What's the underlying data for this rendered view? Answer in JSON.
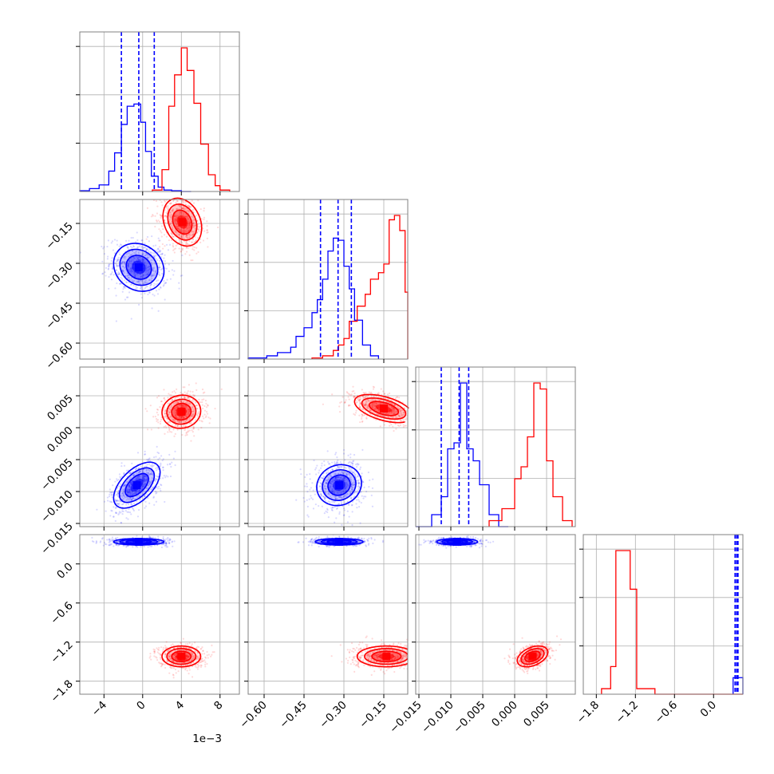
{
  "colors": {
    "a": "#0000ff",
    "b": "#ff0000",
    "grid": "#b0b0b0",
    "frame": "#808080"
  },
  "chart_data": {
    "type": "corner",
    "grid": true,
    "series_colors": [
      "blue",
      "red"
    ],
    "parameters": [
      {
        "range": [
          -6.5,
          10.0
        ],
        "scale": 0.001,
        "offset_label": "1e−3",
        "ticks": [
          -4,
          0,
          4,
          8
        ],
        "tick_labels": [
          "−4",
          "0",
          "4",
          "8"
        ]
      },
      {
        "range": [
          -0.66,
          -0.06
        ],
        "ticks": [
          -0.6,
          -0.45,
          -0.3,
          -0.15
        ],
        "tick_labels": [
          "−0.60",
          "−0.45",
          "−0.30",
          "−0.15"
        ]
      },
      {
        "range": [
          -0.0155,
          0.0095
        ],
        "ticks": [
          -0.015,
          -0.01,
          -0.005,
          0.0,
          0.005
        ],
        "tick_labels": [
          "−0.015",
          "−0.010",
          "−0.005",
          "0.000",
          "0.005"
        ]
      },
      {
        "range": [
          -2.0,
          0.45
        ],
        "ticks": [
          -1.8,
          -1.2,
          -0.6,
          0.0
        ],
        "tick_labels": [
          "−1.8",
          "−1.2",
          "−0.6",
          "0.0"
        ]
      }
    ],
    "histograms": [
      {
        "param": 0,
        "blue": {
          "edges": [
            -6.5,
            -5.5,
            -4.5,
            -3.5,
            -2.9,
            -2.2,
            -1.6,
            -0.9,
            -0.2,
            0.3,
            0.9,
            1.6,
            2.2,
            3.0,
            4.0,
            5.0
          ],
          "counts": [
            1,
            4,
            9,
            28,
            53,
            92,
            117,
            120,
            95,
            55,
            21,
            6,
            2,
            1,
            0
          ]
        },
        "red": {
          "edges": [
            1.0,
            2.0,
            2.7,
            3.3,
            4.0,
            4.6,
            5.3,
            6.0,
            6.8,
            7.5,
            8.0,
            9.0
          ],
          "counts": [
            2,
            30,
            117,
            160,
            197,
            166,
            121,
            65,
            23,
            8,
            2
          ]
        },
        "quantiles": [
          -2.2,
          -0.4,
          1.2
        ]
      },
      {
        "param": 1,
        "blue": {
          "edges": [
            -0.66,
            -0.59,
            -0.55,
            -0.5,
            -0.48,
            -0.45,
            -0.42,
            -0.4,
            -0.38,
            -0.36,
            -0.34,
            -0.32,
            -0.3,
            -0.28,
            -0.26,
            -0.23,
            -0.2,
            -0.17
          ],
          "counts": [
            1,
            3,
            6,
            11,
            21,
            29,
            43,
            55,
            74,
            100,
            112,
            110,
            86,
            65,
            36,
            13,
            3
          ]
        },
        "red": {
          "edges": [
            -0.42,
            -0.38,
            -0.34,
            -0.32,
            -0.3,
            -0.28,
            -0.25,
            -0.22,
            -0.2,
            -0.17,
            -0.15,
            -0.13,
            -0.11,
            -0.09,
            -0.07,
            -0.06
          ],
          "counts": [
            1,
            3,
            8,
            13,
            19,
            35,
            49,
            60,
            74,
            80,
            88,
            129,
            133,
            119,
            62
          ]
        },
        "quantiles": [
          -0.388,
          -0.322,
          -0.272
        ]
      },
      {
        "param": 2,
        "blue": {
          "edges": [
            -0.0155,
            -0.013,
            -0.0115,
            -0.0105,
            -0.0095,
            -0.0085,
            -0.0075,
            -0.0065,
            -0.0055,
            -0.004,
            -0.0025,
            -0.001
          ],
          "counts": [
            0,
            2,
            5,
            13,
            14,
            24,
            13,
            11,
            7,
            2,
            0
          ]
        },
        "red": {
          "edges": [
            -0.004,
            -0.002,
            0.0,
            0.001,
            0.002,
            0.003,
            0.004,
            0.005,
            0.006,
            0.0075,
            0.009
          ],
          "counts": [
            1,
            3,
            8,
            10,
            15,
            24,
            23,
            11,
            5,
            1
          ]
        },
        "quantiles": [
          -0.0115,
          -0.0087,
          -0.0072
        ]
      },
      {
        "param": 3,
        "blue": {
          "edges": [
            0.3,
            0.45
          ],
          "counts": [
            3
          ]
        },
        "red": {
          "edges": [
            -1.72,
            -1.58,
            -1.5,
            -1.38,
            -1.28,
            -1.18,
            -0.9,
            0.45
          ],
          "counts": [
            1,
            5,
            26,
            26,
            19,
            1,
            0
          ]
        },
        "quantiles": [
          0.33,
          0.355,
          0.375
        ]
      }
    ],
    "blobs_2d": [
      {
        "x": 0,
        "y": 1,
        "blue": {
          "center": [
            -0.4,
            -0.315
          ],
          "sigma": [
            1.3,
            0.045
          ],
          "rho": -0.15
        },
        "red": {
          "center": [
            4.1,
            -0.145
          ],
          "sigma": [
            1.0,
            0.045
          ],
          "rho": -0.25
        }
      },
      {
        "x": 0,
        "y": 2,
        "blue": {
          "center": [
            -0.6,
            -0.009
          ],
          "sigma": [
            1.2,
            0.0018
          ],
          "rho": 0.55
        },
        "red": {
          "center": [
            4.0,
            0.0025
          ],
          "sigma": [
            1.0,
            0.0013
          ],
          "rho": 0.05
        }
      },
      {
        "x": 1,
        "y": 2,
        "blue": {
          "center": [
            -0.318,
            -0.009
          ],
          "sigma": [
            0.042,
            0.0016
          ],
          "rho": 0.1
        },
        "red": {
          "center": [
            -0.15,
            0.003
          ],
          "sigma": [
            0.055,
            0.0011
          ],
          "rho": -0.5
        }
      },
      {
        "x": 0,
        "y": 3,
        "blue": {
          "center": [
            -0.4,
            0.34
          ],
          "sigma": [
            1.3,
            0.025
          ],
          "rho": 0
        },
        "red": {
          "center": [
            4.0,
            -1.42
          ],
          "sigma": [
            1.0,
            0.08
          ],
          "rho": 0
        }
      },
      {
        "x": 1,
        "y": 3,
        "blue": {
          "center": [
            -0.318,
            0.34
          ],
          "sigma": [
            0.045,
            0.025
          ],
          "rho": 0
        },
        "red": {
          "center": [
            -0.14,
            -1.42
          ],
          "sigma": [
            0.055,
            0.08
          ],
          "rho": 0
        }
      },
      {
        "x": 2,
        "y": 3,
        "blue": {
          "center": [
            -0.009,
            0.34
          ],
          "sigma": [
            0.0016,
            0.025
          ],
          "rho": 0
        },
        "red": {
          "center": [
            0.0028,
            -1.42
          ],
          "sigma": [
            0.0012,
            0.08
          ],
          "rho": 0.4
        }
      }
    ]
  }
}
